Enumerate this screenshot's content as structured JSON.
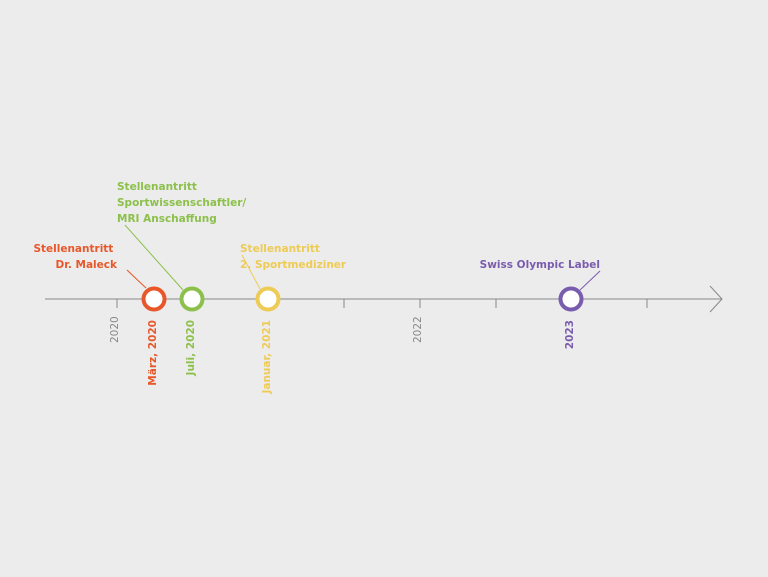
{
  "axis_labels": [
    "2020",
    "2022"
  ],
  "events": [
    {
      "label": [
        "Stellenantritt",
        "Dr. Maleck"
      ],
      "date": "März, 2020"
    },
    {
      "label": [
        "Stellenantritt",
        "Sportwissenschaftler/",
        "MRI Anschaffung"
      ],
      "date": "Juli, 2020"
    },
    {
      "label": [
        "Stellenantritt",
        "2. Sportmediziner"
      ],
      "date": "Januar, 2021"
    },
    {
      "label": [
        "Swiss Olympic Label"
      ],
      "date": "2023"
    }
  ]
}
